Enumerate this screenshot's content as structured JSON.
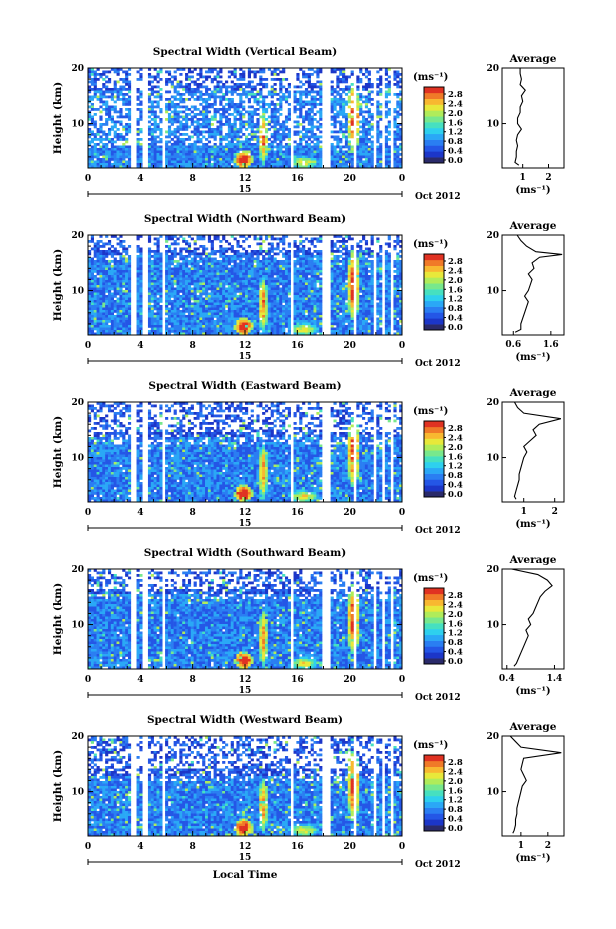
{
  "figure": {
    "xlabel": "Local Time",
    "date_label": "Oct 2012",
    "cbar_unit": "(ms⁻¹)",
    "avg_title": "Average",
    "avg_xlabel": "(ms⁻¹)",
    "ylabel": "Height (km)",
    "cbar_colors": [
      "#2a2a6a",
      "#1c36c8",
      "#2456e6",
      "#2a7ef2",
      "#2aa8f6",
      "#2ed0ee",
      "#46e0c0",
      "#78e88c",
      "#b0ec5a",
      "#e8e83a",
      "#f8b830",
      "#f07a28",
      "#e03222"
    ]
  },
  "chart_data": [
    {
      "type": "heatmap",
      "title": "Spectral Width (Vertical Beam)",
      "xlabel": "Local Time",
      "ylabel": "Height (km)",
      "x_ticks": [
        "0",
        "4",
        "8",
        "12",
        "16",
        "20",
        "0"
      ],
      "x_date_tick": "15",
      "x_date_label": "Oct 2012",
      "xlim": [
        0,
        24
      ],
      "y_ticks": [
        "10",
        "20"
      ],
      "ylim": [
        2,
        20
      ],
      "colorbar": {
        "unit": "(ms⁻¹)",
        "ticks": [
          "0.0",
          "0.4",
          "0.8",
          "1.2",
          "1.6",
          "2.0",
          "2.4",
          "2.8"
        ]
      },
      "average_profile": {
        "title": "Average",
        "xlabel": "(ms⁻¹)",
        "x_ticks": [
          "1",
          "2"
        ],
        "xlim": [
          0.2,
          2.6
        ],
        "y_ticks": [
          "10",
          "20"
        ],
        "heights": [
          2.5,
          3,
          4,
          5,
          6,
          7,
          8,
          9,
          10,
          11,
          12,
          13,
          14,
          15,
          16,
          17,
          18,
          19,
          20
        ],
        "values": [
          0.85,
          0.7,
          0.75,
          0.75,
          0.8,
          0.75,
          0.8,
          0.95,
          0.8,
          0.8,
          0.9,
          0.9,
          1.0,
          0.95,
          1.1,
          0.9,
          0.95,
          0.9,
          0.9
        ]
      }
    },
    {
      "type": "heatmap",
      "title": "Spectral Width (Northward Beam)",
      "xlabel": "Local Time",
      "ylabel": "Height (km)",
      "x_ticks": [
        "0",
        "4",
        "8",
        "12",
        "16",
        "20",
        "0"
      ],
      "x_date_tick": "15",
      "x_date_label": "Oct 2012",
      "xlim": [
        0,
        24
      ],
      "y_ticks": [
        "10",
        "20"
      ],
      "ylim": [
        2,
        20
      ],
      "colorbar": {
        "unit": "(ms⁻¹)",
        "ticks": [
          "0.0",
          "0.4",
          "0.8",
          "1.2",
          "1.6",
          "2.0",
          "2.4",
          "2.8"
        ]
      },
      "average_profile": {
        "title": "Average",
        "xlabel": "(ms⁻¹)",
        "x_ticks": [
          "0.6",
          "1.6"
        ],
        "xlim": [
          0.3,
          1.95
        ],
        "y_ticks": [
          "10",
          "20"
        ],
        "heights": [
          2.5,
          3,
          4,
          5,
          6,
          7,
          8,
          9,
          10,
          11,
          12,
          13,
          14,
          15,
          16,
          16.5,
          17,
          18,
          19,
          20
        ],
        "values": [
          0.65,
          0.8,
          0.8,
          0.85,
          0.9,
          0.95,
          1.0,
          0.9,
          1.0,
          1.05,
          1.1,
          1.0,
          1.15,
          1.1,
          1.3,
          1.9,
          1.2,
          0.95,
          0.8,
          0.7
        ]
      }
    },
    {
      "type": "heatmap",
      "title": "Spectral Width (Eastward Beam)",
      "xlabel": "Local Time",
      "ylabel": "Height (km)",
      "x_ticks": [
        "0",
        "4",
        "8",
        "12",
        "16",
        "20",
        "0"
      ],
      "x_date_tick": "15",
      "x_date_label": "Oct 2012",
      "xlim": [
        0,
        24
      ],
      "y_ticks": [
        "10",
        "20"
      ],
      "ylim": [
        2,
        20
      ],
      "colorbar": {
        "unit": "(ms⁻¹)",
        "ticks": [
          "0.0",
          "0.4",
          "0.8",
          "1.2",
          "1.6",
          "2.0",
          "2.4",
          "2.8"
        ]
      },
      "average_profile": {
        "title": "Average",
        "xlabel": "(ms⁻¹)",
        "x_ticks": [
          "1",
          "2"
        ],
        "xlim": [
          0.3,
          2.3
        ],
        "y_ticks": [
          "10",
          "20"
        ],
        "heights": [
          2.5,
          3,
          4,
          5,
          6,
          7,
          8,
          9,
          10,
          11,
          12,
          13,
          14,
          15,
          16,
          17,
          18,
          19,
          20
        ],
        "values": [
          0.75,
          0.7,
          0.75,
          0.8,
          0.85,
          0.85,
          0.9,
          0.95,
          1.0,
          1.1,
          1.0,
          1.2,
          1.4,
          1.3,
          1.5,
          2.2,
          1.0,
          0.8,
          0.7
        ]
      }
    },
    {
      "type": "heatmap",
      "title": "Spectral Width (Southward Beam)",
      "xlabel": "Local Time",
      "ylabel": "Height (km)",
      "x_ticks": [
        "0",
        "4",
        "8",
        "12",
        "16",
        "20",
        "0"
      ],
      "x_date_tick": "15",
      "x_date_label": "Oct 2012",
      "xlim": [
        0,
        24
      ],
      "y_ticks": [
        "10",
        "20"
      ],
      "ylim": [
        2,
        20
      ],
      "colorbar": {
        "unit": "(ms⁻¹)",
        "ticks": [
          "0.0",
          "0.4",
          "0.8",
          "1.2",
          "1.6",
          "2.0",
          "2.4",
          "2.8"
        ]
      },
      "average_profile": {
        "title": "Average",
        "xlabel": "(ms⁻¹)",
        "x_ticks": [
          "0.4",
          "1.4"
        ],
        "xlim": [
          0.3,
          1.6
        ],
        "y_ticks": [
          "10",
          "20"
        ],
        "heights": [
          2.5,
          3,
          4,
          5,
          6,
          7,
          8,
          9,
          10,
          11,
          12,
          13,
          14,
          15,
          16,
          17,
          18,
          19,
          20
        ],
        "values": [
          0.55,
          0.6,
          0.65,
          0.7,
          0.75,
          0.8,
          0.85,
          0.8,
          0.9,
          0.85,
          0.95,
          1.0,
          1.05,
          1.1,
          1.2,
          1.35,
          1.25,
          1.05,
          0.5
        ]
      }
    },
    {
      "type": "heatmap",
      "title": "Spectral Width (Westward Beam)",
      "xlabel": "Local Time",
      "ylabel": "Height (km)",
      "x_ticks": [
        "0",
        "4",
        "8",
        "12",
        "16",
        "20",
        "0"
      ],
      "x_date_tick": "15",
      "x_date_label": "Oct 2012",
      "xlim": [
        0,
        24
      ],
      "y_ticks": [
        "10",
        "20"
      ],
      "ylim": [
        2,
        20
      ],
      "colorbar": {
        "unit": "(ms⁻¹)",
        "ticks": [
          "0.0",
          "0.4",
          "0.8",
          "1.2",
          "1.6",
          "2.0",
          "2.4",
          "2.8"
        ]
      },
      "average_profile": {
        "title": "Average",
        "xlabel": "(ms⁻¹)",
        "x_ticks": [
          "1",
          "2"
        ],
        "xlim": [
          0.3,
          2.6
        ],
        "y_ticks": [
          "10",
          "20"
        ],
        "heights": [
          2.5,
          3,
          4,
          5,
          6,
          7,
          8,
          9,
          10,
          11,
          12,
          13,
          14,
          15,
          16,
          17,
          18,
          19,
          20
        ],
        "values": [
          0.7,
          0.75,
          0.8,
          0.8,
          0.85,
          0.85,
          0.9,
          0.95,
          1.0,
          1.05,
          1.2,
          1.1,
          1.0,
          1.05,
          1.1,
          2.5,
          1.0,
          0.8,
          0.6
        ]
      }
    }
  ]
}
